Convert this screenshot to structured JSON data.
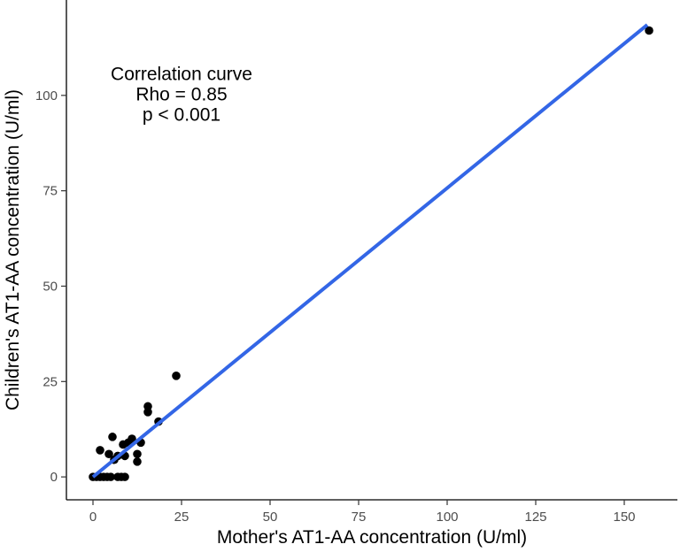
{
  "chart_data": {
    "type": "scatter",
    "xlabel": "Mother's AT1-AA concentration (U/ml)",
    "ylabel": "Children's AT1-AA concentration (U/ml)",
    "xlim": [
      -7.5,
      165
    ],
    "ylim": [
      -6,
      125
    ],
    "x_ticks": [
      0,
      25,
      50,
      75,
      100,
      125,
      150
    ],
    "y_ticks": [
      0,
      25,
      50,
      75,
      100
    ],
    "grid": false,
    "points": [
      {
        "x": 0,
        "y": 0
      },
      {
        "x": 1,
        "y": 0
      },
      {
        "x": 2,
        "y": 0
      },
      {
        "x": 3,
        "y": 0
      },
      {
        "x": 4,
        "y": 0
      },
      {
        "x": 5,
        "y": 0
      },
      {
        "x": 7,
        "y": 0
      },
      {
        "x": 8,
        "y": 0
      },
      {
        "x": 9,
        "y": 0
      },
      {
        "x": 2,
        "y": 7
      },
      {
        "x": 4.5,
        "y": 6
      },
      {
        "x": 5.5,
        "y": 10.5
      },
      {
        "x": 6,
        "y": 4.5
      },
      {
        "x": 7,
        "y": 5.5
      },
      {
        "x": 8.5,
        "y": 8.5
      },
      {
        "x": 9,
        "y": 5.5
      },
      {
        "x": 10,
        "y": 9
      },
      {
        "x": 11,
        "y": 10
      },
      {
        "x": 12.5,
        "y": 6
      },
      {
        "x": 12.5,
        "y": 4
      },
      {
        "x": 13.5,
        "y": 9
      },
      {
        "x": 15.5,
        "y": 17
      },
      {
        "x": 15.5,
        "y": 18.5
      },
      {
        "x": 18.5,
        "y": 14.5
      },
      {
        "x": 23.5,
        "y": 26.5
      },
      {
        "x": 157,
        "y": 117
      }
    ],
    "regression_line": {
      "x": [
        0,
        156.5
      ],
      "y": [
        0,
        118.5
      ],
      "color": "#3366e6"
    },
    "point_color": "#000000",
    "annotation": {
      "lines": [
        "Correlation curve",
        "Rho = 0.85",
        "p < 0.001"
      ],
      "x": 25,
      "y": 104
    }
  }
}
